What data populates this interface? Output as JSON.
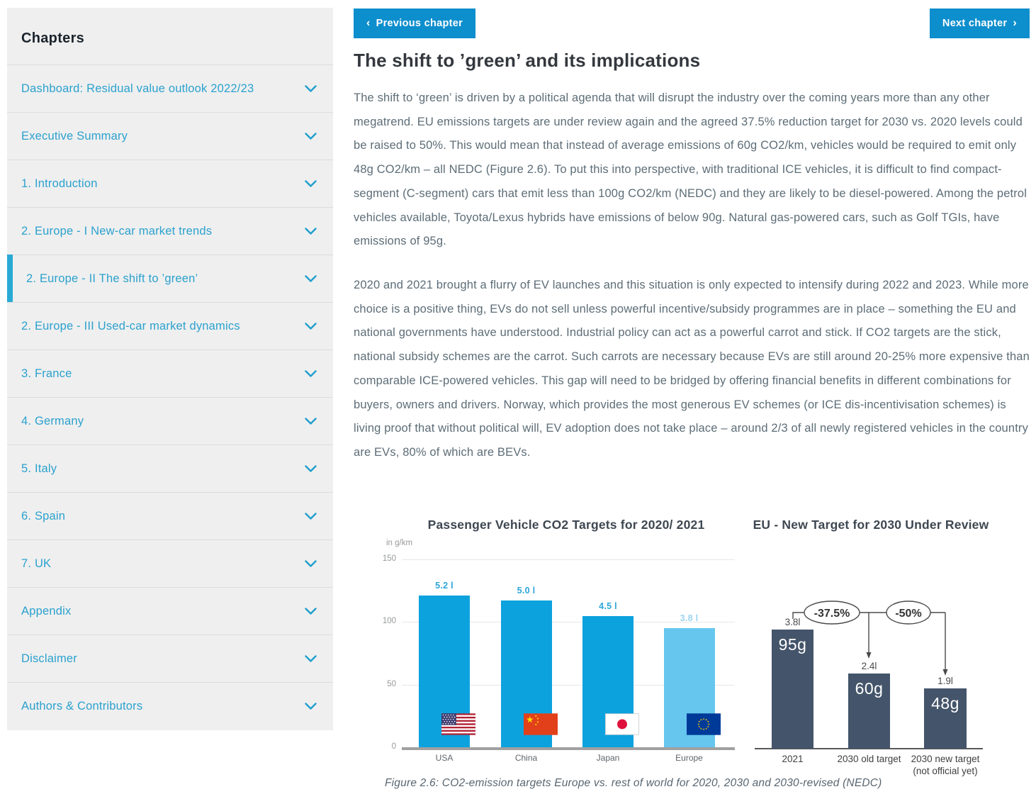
{
  "sidebar": {
    "title": "Chapters",
    "items": [
      {
        "label": "Dashboard: Residual value outlook 2022/23",
        "active": false
      },
      {
        "label": "Executive Summary",
        "active": false
      },
      {
        "label": "1. Introduction",
        "active": false
      },
      {
        "label": "2. Europe - I New-car market trends",
        "active": false
      },
      {
        "label": "2. Europe - II The shift to ’green’",
        "active": true
      },
      {
        "label": "2. Europe - III Used-car market dynamics",
        "active": false
      },
      {
        "label": "3. France",
        "active": false
      },
      {
        "label": "4. Germany",
        "active": false
      },
      {
        "label": "5. Italy",
        "active": false
      },
      {
        "label": "6. Spain",
        "active": false
      },
      {
        "label": "7. UK",
        "active": false
      },
      {
        "label": "Appendix",
        "active": false
      },
      {
        "label": "Disclaimer",
        "active": false
      },
      {
        "label": "Authors & Contributors",
        "active": false
      }
    ]
  },
  "nav": {
    "previous": {
      "chevron": "‹",
      "label": "Previous chapter"
    },
    "next": {
      "label": "Next chapter",
      "chevron": "›"
    }
  },
  "article": {
    "title": "The shift to ’green’ and its implications",
    "paragraphs": [
      "The shift to ‘green’ is driven by a political agenda that will disrupt the industry over the coming years more than any other megatrend. EU emissions targets are under review again and the agreed 37.5% reduction target for 2030 vs. 2020 levels could be raised to 50%. This would mean that instead of average emissions of 60g CO2/km, vehicles would be required to emit only 48g CO2/km – all NEDC (Figure 2.6). To put this into perspective, with traditional ICE vehicles, it is difficult to find compact-segment (C-segment) cars that emit less than 100g CO2/km (NEDC) and they are likely to be diesel-powered. Among the petrol vehicles available, Toyota/Lexus hybrids have emissions of below 90g. Natural gas-powered cars, such as Golf TGIs, have emissions of 95g.",
      "2020 and 2021 brought a flurry of EV launches and this situation is only expected to intensify during 2022 and 2023. While more choice is a positive thing, EVs do not sell unless powerful incentive/subsidy programmes are in place – something the EU and national governments have understood. Industrial policy can act as a powerful carrot and stick. If CO2 targets are the stick, national subsidy schemes are the carrot. Such carrots are necessary because EVs are still around 20-25% more expensive than comparable ICE-powered vehicles. This gap will need to be bridged by offering financial benefits in different combinations for buyers, owners and drivers. Norway, which provides the most generous EV schemes (or ICE dis-incentivisation schemes) is living proof that without political will, EV adoption does not take place – around 2/3 of all newly registered vehicles in the country are EVs, 80% of which are BEVs."
    ],
    "figure_caption": "Figure 2.6: CO2-emission targets Europe vs. rest of world for 2020, 2030 and 2030-revised (NEDC)"
  },
  "chart_data": [
    {
      "type": "bar",
      "title": "Passenger Vehicle CO2 Targets for 2020/ 2021",
      "unit_label": "in g/km",
      "categories": [
        "USA",
        "China",
        "Japan",
        "Europe"
      ],
      "values": [
        121,
        117,
        105,
        95
      ],
      "bar_labels": [
        "5.2 l",
        "5.0 l",
        "4.5 l",
        "3.8 l"
      ],
      "flags": [
        "usa",
        "china",
        "japan",
        "eu"
      ],
      "yticks": [
        150,
        100,
        50,
        0
      ],
      "ylim": [
        0,
        150
      ],
      "grid": true,
      "legend": "none",
      "bar_colors": [
        "#0ca2de",
        "#0ca2de",
        "#0ca2de",
        "#66c6ee"
      ],
      "label_colors": [
        "#2ba6d9",
        "#2ba6d9",
        "#2ba6d9",
        "#9bd4f0"
      ]
    },
    {
      "type": "bar",
      "title": "EU - New Target for 2030 Under Review",
      "categories": [
        "2021",
        "2030 old target",
        "2030 new target"
      ],
      "category_subs": [
        "",
        "",
        "(not official yet)"
      ],
      "values": [
        95,
        60,
        48
      ],
      "bar_value_labels": [
        "95g",
        "60g",
        "48g"
      ],
      "above_labels": [
        "3.8l",
        "2.4l",
        "1.9l"
      ],
      "annotations": [
        "-37.5%",
        "-50%"
      ],
      "ylim": [
        0,
        150
      ],
      "grid": false,
      "legend": "none",
      "bar_color": "#44546a"
    }
  ]
}
